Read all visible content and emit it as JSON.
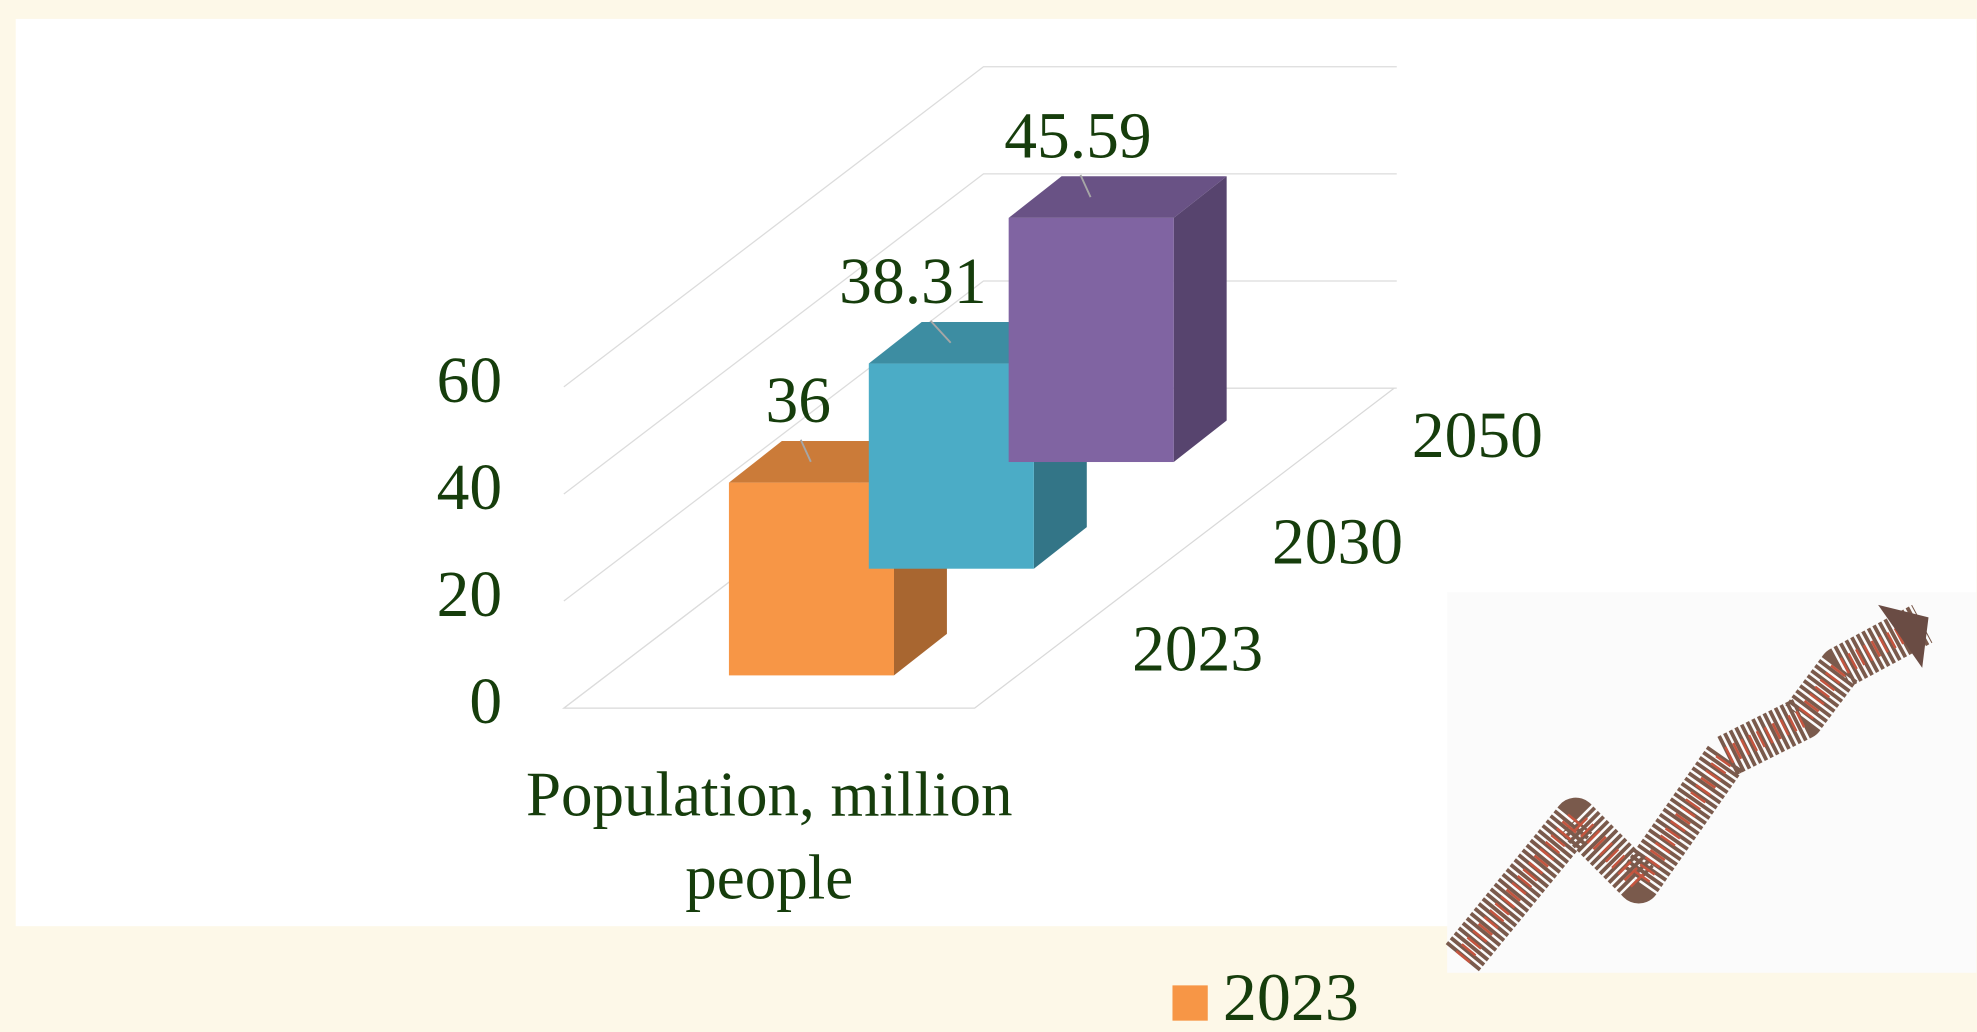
{
  "chart_data": {
    "type": "bar3d",
    "categories": [
      "Population, million people"
    ],
    "series": [
      {
        "name": "2023",
        "color": "#f79646",
        "values": [
          36
        ]
      },
      {
        "name": "2030",
        "color": "#4bacc6",
        "values": [
          38.31
        ]
      },
      {
        "name": "2050",
        "color": "#8064a2",
        "values": [
          45.59
        ]
      }
    ],
    "ylim": [
      0,
      60
    ],
    "yticks": [
      0,
      20,
      40,
      60
    ],
    "grid": true
  }
}
